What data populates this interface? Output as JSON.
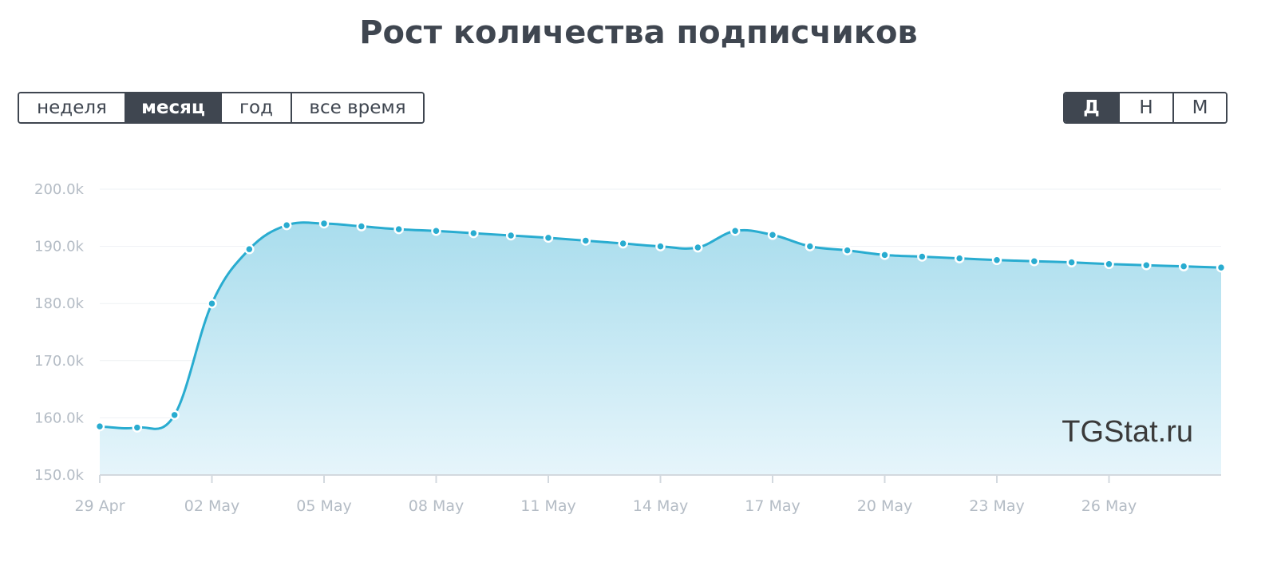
{
  "title": "Рост количества подписчиков",
  "period_tabs": [
    {
      "label": "неделя",
      "active": false
    },
    {
      "label": "месяц",
      "active": true
    },
    {
      "label": "год",
      "active": false
    },
    {
      "label": "все время",
      "active": false
    }
  ],
  "granularity_tabs": [
    {
      "label": "Д",
      "active": true
    },
    {
      "label": "Н",
      "active": false
    },
    {
      "label": "М",
      "active": false
    }
  ],
  "watermark": "TGStat.ru",
  "colors": {
    "line": "#29acd0",
    "fill_top": "#a9dded",
    "fill_bottom": "#e6f5fb",
    "grid": "#eef1f4",
    "axis": "#d3d9df",
    "tick_text": "#b4bcc5",
    "dark": "#3f4650"
  },
  "chart_data": {
    "type": "area",
    "x": [
      "29 Apr",
      "30 Apr",
      "01 May",
      "02 May",
      "03 May",
      "04 May",
      "05 May",
      "06 May",
      "07 May",
      "08 May",
      "09 May",
      "10 May",
      "11 May",
      "12 May",
      "13 May",
      "14 May",
      "15 May",
      "16 May",
      "17 May",
      "18 May",
      "19 May",
      "20 May",
      "21 May",
      "22 May",
      "23 May",
      "24 May",
      "25 May",
      "26 May",
      "27 May",
      "28 May",
      "29 May"
    ],
    "values": [
      158500,
      158300,
      160500,
      180000,
      189500,
      193700,
      194000,
      193500,
      193000,
      192700,
      192300,
      191900,
      191500,
      191000,
      190500,
      190000,
      189800,
      192700,
      192000,
      190000,
      189300,
      188500,
      188200,
      187900,
      187600,
      187400,
      187200,
      186900,
      186700,
      186500,
      186300
    ],
    "x_tick_labels": [
      "29 Apr",
      "02 May",
      "05 May",
      "08 May",
      "11 May",
      "14 May",
      "17 May",
      "20 May",
      "23 May",
      "26 May"
    ],
    "x_tick_indices": [
      0,
      3,
      6,
      9,
      12,
      15,
      18,
      21,
      24,
      27
    ],
    "y_ticks": [
      150000,
      160000,
      170000,
      180000,
      190000,
      200000
    ],
    "y_tick_labels": [
      "150.0k",
      "160.0k",
      "170.0k",
      "180.0k",
      "190.0k",
      "200.0k"
    ],
    "ylim": [
      150000,
      200000
    ],
    "grid": true,
    "legend": "none"
  }
}
